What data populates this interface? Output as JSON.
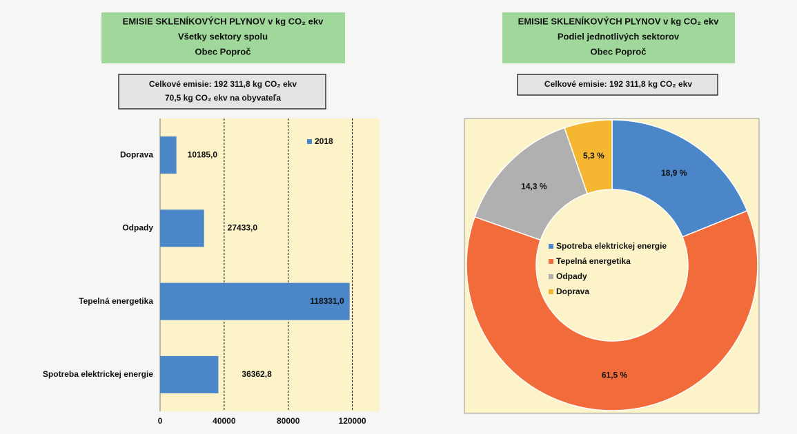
{
  "chart_data": [
    {
      "type": "bar",
      "orientation": "horizontal",
      "title": [
        "EMISIE SKLENÍKOVÝCH PLYNOV v kg CO₂ ekv",
        "Všetky sektory spolu",
        "Obec Poproč"
      ],
      "subtitle": [
        "Celkové emisie: 192 311,8 kg CO₂ ekv",
        "70,5 kg CO₂ ekv na obyvateľa"
      ],
      "categories": [
        "Doprava",
        "Odpady",
        "Tepelná energetika",
        "Spotreba elektrickej energie"
      ],
      "series": [
        {
          "name": "2018",
          "color": "#4a86c8",
          "values": [
            10185,
            27433,
            118331,
            36362.8
          ],
          "value_labels": [
            "10185,0",
            "27433,0",
            "118331,0",
            "36362,8"
          ]
        }
      ],
      "xlim": [
        0,
        137000
      ],
      "xticks": [
        0,
        40000,
        80000,
        120000
      ],
      "grid": true,
      "legend": "top-right"
    },
    {
      "type": "pie",
      "donut": true,
      "title": [
        "EMISIE SKLENÍKOVÝCH PLYNOV v kg CO₂ ekv",
        "Podiel jednotlivých sektorov",
        "Obec Poproč"
      ],
      "subtitle": [
        "Celkové emisie: 192 311,8 kg CO₂ ekv"
      ],
      "categories": [
        "Spotreba elektrickej energie",
        "Tepelná energetika",
        "Odpady",
        "Doprava"
      ],
      "values": [
        18.9,
        61.5,
        14.3,
        5.3
      ],
      "value_labels": [
        "18,9 %",
        "61,5 %",
        "14,3 %",
        "5,3 %"
      ],
      "colors": [
        "#4a86c8",
        "#f26b3a",
        "#b0b0b0",
        "#f5b731"
      ],
      "legend": "center"
    }
  ]
}
